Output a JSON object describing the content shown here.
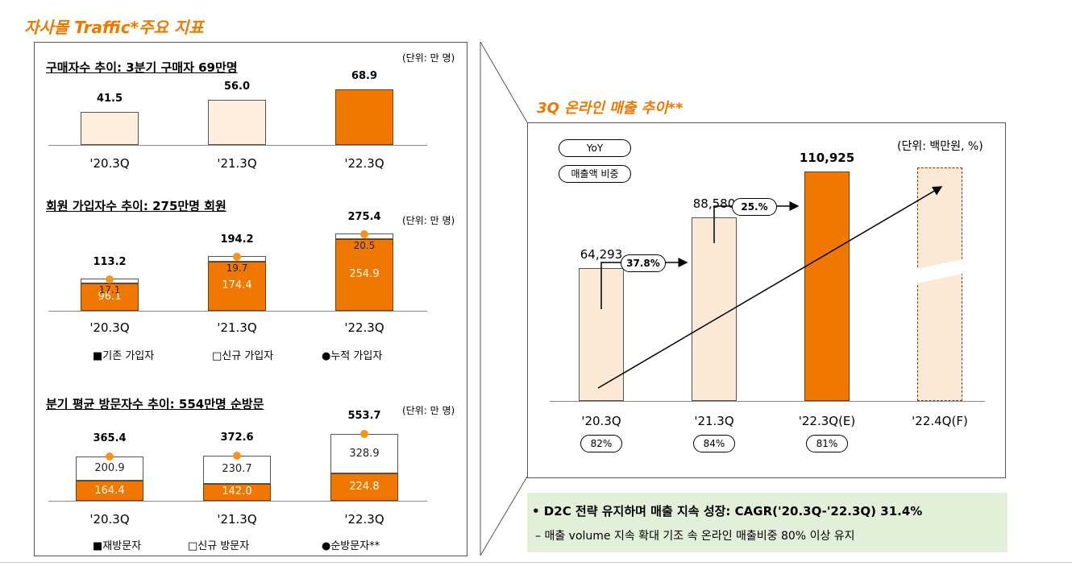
{
  "page_title": "자사몰 Traffic*주요 지표",
  "left_panel": {
    "buyers": {
      "title": "구매자수 추이: 3분기 구매자 69만명",
      "unit": "(단위: 만 명)"
    },
    "members": {
      "title": "회원 가입자수 추이: 275만명 회원",
      "unit": "(단위: 만 명)",
      "legend": [
        "■기존 가입자",
        "□신규 가입자",
        "●누적 가입자"
      ]
    },
    "visitors": {
      "title": "분기 평균 방문자수 추이: 554만명 순방문",
      "unit": "(단위: 만 명)",
      "legend": [
        "■재방문자",
        "□신규 방문자",
        "●순방문자**"
      ]
    }
  },
  "right_panel": {
    "title": "3Q 온라인 매출 추이**",
    "unit": "(단위: 백만원, %)",
    "legend_yoy": "YoY",
    "legend_share": "매출액 비중",
    "yoy_labels": [
      "37.8%",
      "25.%"
    ],
    "summary": {
      "headline": "• D2C 전략 유지하며 매출 지속 성장: CAGR('20.3Q-'22.3Q) 31.4%",
      "sub": "– 매출 volume 지속 확대 기조 속 온라인 매출비중 80% 이상 유지"
    }
  },
  "colors": {
    "accent": "#f07800",
    "bar_light": "#fdeedd",
    "bar_light2": "#fbe9d6",
    "dot": "#f7941d",
    "summary_bg": "#e2efd9"
  },
  "chart_data": [
    {
      "type": "bar",
      "title": "구매자수 추이: 3분기 구매자 69만명",
      "categories": [
        "'20.3Q",
        "'21.3Q",
        "'22.3Q"
      ],
      "values": [
        41.5,
        56.0,
        68.9
      ],
      "value_labels": [
        "41.5",
        "56.0",
        "68.9"
      ],
      "highlight": [
        false,
        false,
        true
      ],
      "ylim": [
        0,
        75
      ]
    },
    {
      "type": "bar",
      "title": "회원 가입자수 추이: 275만명 회원",
      "categories": [
        "'20.3Q",
        "'21.3Q",
        "'22.3Q"
      ],
      "series": [
        {
          "name": "기존 가입자",
          "values": [
            96.1,
            174.4,
            254.9
          ],
          "labels": [
            "96.1",
            "174.4",
            "254.9"
          ]
        },
        {
          "name": "신규 가입자",
          "values": [
            17.1,
            19.7,
            20.5
          ],
          "labels": [
            "17.1",
            "19.7",
            "20.5"
          ]
        },
        {
          "name": "누적 가입자",
          "values": [
            113.2,
            194.2,
            275.4
          ],
          "labels": [
            "113.2",
            "194.2",
            "275.4"
          ]
        }
      ],
      "ylim": [
        0,
        300
      ]
    },
    {
      "type": "bar",
      "title": "분기 평균 방문자수 추이: 554만명 순방문",
      "categories": [
        "'20.3Q",
        "'21.3Q",
        "'22.3Q"
      ],
      "series": [
        {
          "name": "재방문자",
          "values": [
            164.4,
            142.0,
            224.8
          ],
          "labels": [
            "164.4",
            "142.0",
            "224.8"
          ]
        },
        {
          "name": "신규 방문자",
          "values": [
            200.9,
            230.7,
            328.9
          ],
          "labels": [
            "200.9",
            "230.7",
            "328.9"
          ]
        },
        {
          "name": "순방문자**",
          "values": [
            365.4,
            372.6,
            553.7
          ],
          "labels": [
            "365.4",
            "372.6",
            "553.7"
          ]
        }
      ],
      "ylim": [
        0,
        600
      ]
    },
    {
      "type": "bar",
      "title": "3Q 온라인 매출 추이**",
      "categories": [
        "'20.3Q",
        "'21.3Q",
        "'22.3Q(E)",
        "'22.4Q(F)"
      ],
      "values": [
        64293,
        88580,
        110925,
        null
      ],
      "value_labels": [
        "64,293",
        "88,580",
        "110,925",
        ""
      ],
      "share_labels": [
        "82%",
        "84%",
        "81%"
      ],
      "yoy": [
        "37.8%",
        "25.%"
      ],
      "ylim": [
        0,
        180000
      ]
    }
  ]
}
